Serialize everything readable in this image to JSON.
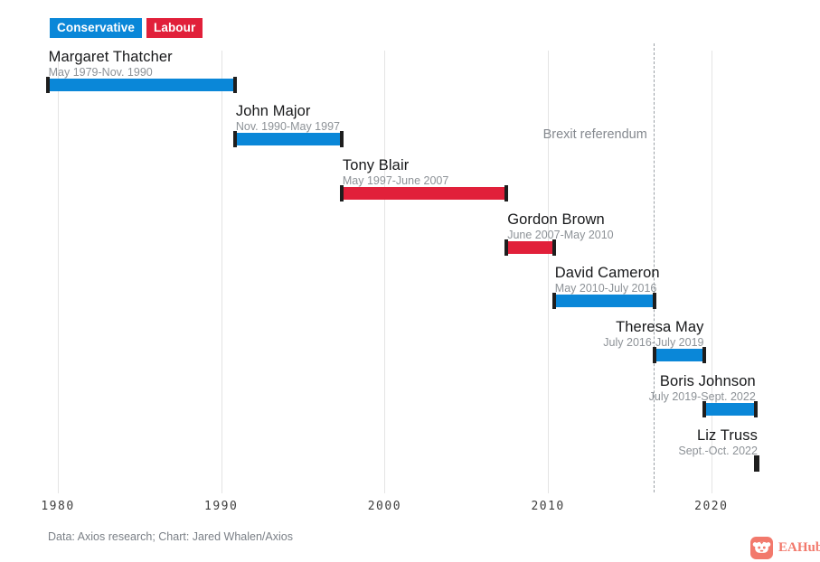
{
  "legend": {
    "items": [
      {
        "label": "Conservative",
        "color": "#0a87d8"
      },
      {
        "label": "Labour",
        "color": "#e1203a"
      }
    ]
  },
  "chart_data": {
    "type": "bar",
    "variant": "horizontal-timeline-gantt",
    "title": "",
    "x_axis": {
      "ticks": [
        1980,
        1990,
        2000,
        2010,
        2020
      ],
      "range_years": [
        1979.3,
        2023.7
      ],
      "grid": true
    },
    "annotation": {
      "label": "Brexit referendum",
      "year": 2016.46,
      "style": "dashed-vertical-line"
    },
    "party_colors": {
      "Conservative": "#0a87d8",
      "Labour": "#e1203a"
    },
    "series": [
      {
        "name": "Margaret Thatcher",
        "dates": "May 1979-Nov. 1990",
        "party": "Conservative",
        "start_year": 1979.37,
        "end_year": 1990.84,
        "label_align": "left"
      },
      {
        "name": "John Major",
        "dates": "Nov. 1990-May 1997",
        "party": "Conservative",
        "start_year": 1990.84,
        "end_year": 1997.37,
        "label_align": "left"
      },
      {
        "name": "Tony Blair",
        "dates": "May 1997-June 2007",
        "party": "Labour",
        "start_year": 1997.37,
        "end_year": 2007.46,
        "label_align": "left"
      },
      {
        "name": "Gordon Brown",
        "dates": "June 2007-May 2010",
        "party": "Labour",
        "start_year": 2007.46,
        "end_year": 2010.37,
        "label_align": "left"
      },
      {
        "name": "David Cameron",
        "dates": "May 2010-July 2016",
        "party": "Conservative",
        "start_year": 2010.37,
        "end_year": 2016.54,
        "label_align": "left"
      },
      {
        "name": "Theresa May",
        "dates": "July 2016-July 2019",
        "party": "Conservative",
        "start_year": 2016.54,
        "end_year": 2019.54,
        "label_align": "right"
      },
      {
        "name": "Boris Johnson",
        "dates": "July 2019-Sept. 2022",
        "party": "Conservative",
        "start_year": 2019.54,
        "end_year": 2022.71,
        "label_align": "right"
      },
      {
        "name": "Liz Truss",
        "dates": "Sept.-Oct. 2022",
        "party": "Conservative",
        "start_year": 2022.71,
        "end_year": 2022.83,
        "label_align": "right"
      }
    ]
  },
  "footer": {
    "source": "Data: Axios research; Chart: Jared Whalen/Axios"
  },
  "watermark": {
    "label": "EAHub",
    "color": "#f2796c"
  }
}
